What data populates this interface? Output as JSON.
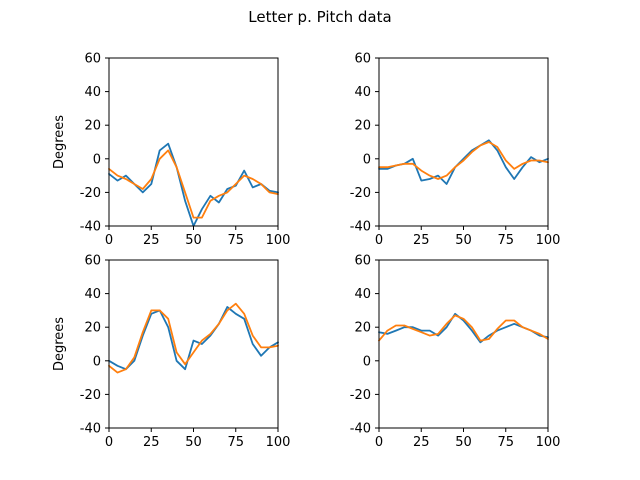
{
  "figure": {
    "title": "Letter p. Pitch data"
  },
  "colors": {
    "series_1": "#1f77b4",
    "series_2": "#ff7f0e"
  },
  "chart_data": [
    {
      "type": "line",
      "title": "",
      "xlabel": "",
      "ylabel": "Degrees",
      "xlim": [
        0,
        100
      ],
      "ylim": [
        -40,
        60
      ],
      "xticks": [
        "0",
        "25",
        "50",
        "75",
        "100"
      ],
      "yticks": [
        "60",
        "40",
        "20",
        "0",
        "-20",
        "-40"
      ],
      "grid": false,
      "x": [
        0,
        5,
        10,
        15,
        20,
        25,
        30,
        35,
        40,
        45,
        50,
        55,
        60,
        65,
        70,
        75,
        80,
        85,
        90,
        95,
        100
      ],
      "series": [
        {
          "values": [
            -9,
            -13,
            -10,
            -15,
            -20,
            -15,
            5,
            9,
            -5,
            -25,
            -40,
            -30,
            -22,
            -26,
            -18,
            -16,
            -7,
            -17,
            -15,
            -19,
            -20
          ]
        },
        {
          "values": [
            -6,
            -10,
            -12,
            -15,
            -18,
            -12,
            0,
            5,
            -5,
            -20,
            -35,
            -35,
            -25,
            -22,
            -20,
            -15,
            -10,
            -12,
            -15,
            -20,
            -21
          ]
        }
      ]
    },
    {
      "type": "line",
      "title": "",
      "xlabel": "",
      "ylabel": "",
      "xlim": [
        0,
        100
      ],
      "ylim": [
        -40,
        60
      ],
      "xticks": [
        "0",
        "25",
        "50",
        "75",
        "100"
      ],
      "yticks": [
        "60",
        "40",
        "20",
        "0",
        "-20",
        "-40"
      ],
      "grid": false,
      "x": [
        0,
        5,
        10,
        15,
        20,
        25,
        30,
        35,
        40,
        45,
        50,
        55,
        60,
        65,
        70,
        75,
        80,
        85,
        90,
        95,
        100
      ],
      "series": [
        {
          "values": [
            -6,
            -6,
            -4,
            -3,
            0,
            -13,
            -12,
            -10,
            -15,
            -5,
            0,
            5,
            8,
            11,
            5,
            -5,
            -12,
            -5,
            1,
            -2,
            0
          ]
        },
        {
          "values": [
            -5,
            -5,
            -4,
            -3,
            -3,
            -7,
            -10,
            -12,
            -10,
            -5,
            -1,
            4,
            8,
            10,
            7,
            -1,
            -6,
            -3,
            -1,
            -1,
            -2
          ]
        }
      ]
    },
    {
      "type": "line",
      "title": "",
      "xlabel": "",
      "ylabel": "Degrees",
      "xlim": [
        0,
        100
      ],
      "ylim": [
        -40,
        60
      ],
      "xticks": [
        "0",
        "25",
        "50",
        "75",
        "100"
      ],
      "yticks": [
        "60",
        "40",
        "20",
        "0",
        "-20",
        "-40"
      ],
      "grid": false,
      "x": [
        0,
        5,
        10,
        15,
        20,
        25,
        30,
        35,
        40,
        45,
        50,
        55,
        60,
        65,
        70,
        75,
        80,
        85,
        90,
        95,
        100
      ],
      "series": [
        {
          "values": [
            0,
            -3,
            -5,
            0,
            15,
            28,
            30,
            20,
            0,
            -5,
            12,
            10,
            15,
            22,
            32,
            28,
            25,
            10,
            3,
            8,
            11
          ]
        },
        {
          "values": [
            -3,
            -7,
            -5,
            2,
            17,
            30,
            30,
            25,
            5,
            -2,
            5,
            12,
            16,
            22,
            30,
            34,
            28,
            15,
            8,
            8,
            9
          ]
        }
      ]
    },
    {
      "type": "line",
      "title": "",
      "xlabel": "",
      "ylabel": "",
      "xlim": [
        0,
        100
      ],
      "ylim": [
        -40,
        60
      ],
      "xticks": [
        "0",
        "25",
        "50",
        "75",
        "100"
      ],
      "yticks": [
        "60",
        "40",
        "20",
        "0",
        "-20",
        "-40"
      ],
      "grid": false,
      "x": [
        0,
        5,
        10,
        15,
        20,
        25,
        30,
        35,
        40,
        45,
        50,
        55,
        60,
        65,
        70,
        75,
        80,
        85,
        90,
        95,
        100
      ],
      "series": [
        {
          "values": [
            17,
            16,
            18,
            20,
            20,
            18,
            18,
            15,
            20,
            28,
            24,
            18,
            11,
            15,
            18,
            20,
            22,
            20,
            18,
            15,
            14
          ]
        },
        {
          "values": [
            12,
            18,
            21,
            21,
            19,
            17,
            15,
            16,
            22,
            27,
            25,
            20,
            12,
            13,
            19,
            24,
            24,
            20,
            18,
            16,
            13
          ]
        }
      ]
    }
  ]
}
